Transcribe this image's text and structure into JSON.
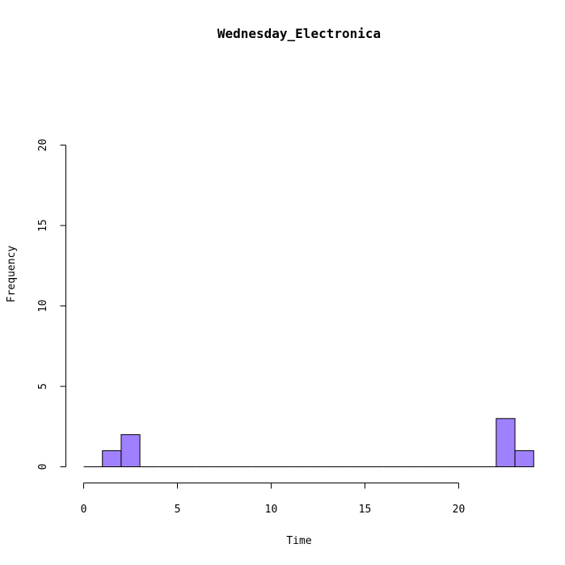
{
  "chart_data": {
    "type": "bar",
    "title": "Wednesday_Electronica",
    "xlabel": "Time",
    "ylabel": "Frequency",
    "xlim": [
      0,
      24
    ],
    "ylim": [
      0,
      20
    ],
    "x_ticks": [
      0,
      5,
      10,
      15,
      20
    ],
    "y_ticks": [
      0,
      5,
      10,
      15,
      20
    ],
    "bin_edges": [
      0,
      1,
      2,
      3,
      4,
      5,
      6,
      7,
      8,
      9,
      10,
      11,
      12,
      13,
      14,
      15,
      16,
      17,
      18,
      19,
      20,
      21,
      22,
      23,
      24
    ],
    "values": [
      0,
      1,
      2,
      0,
      0,
      0,
      0,
      0,
      0,
      0,
      0,
      0,
      0,
      0,
      0,
      0,
      0,
      0,
      0,
      0,
      0,
      0,
      3,
      1
    ],
    "bar_color": "#9f80ff",
    "grid": false
  }
}
